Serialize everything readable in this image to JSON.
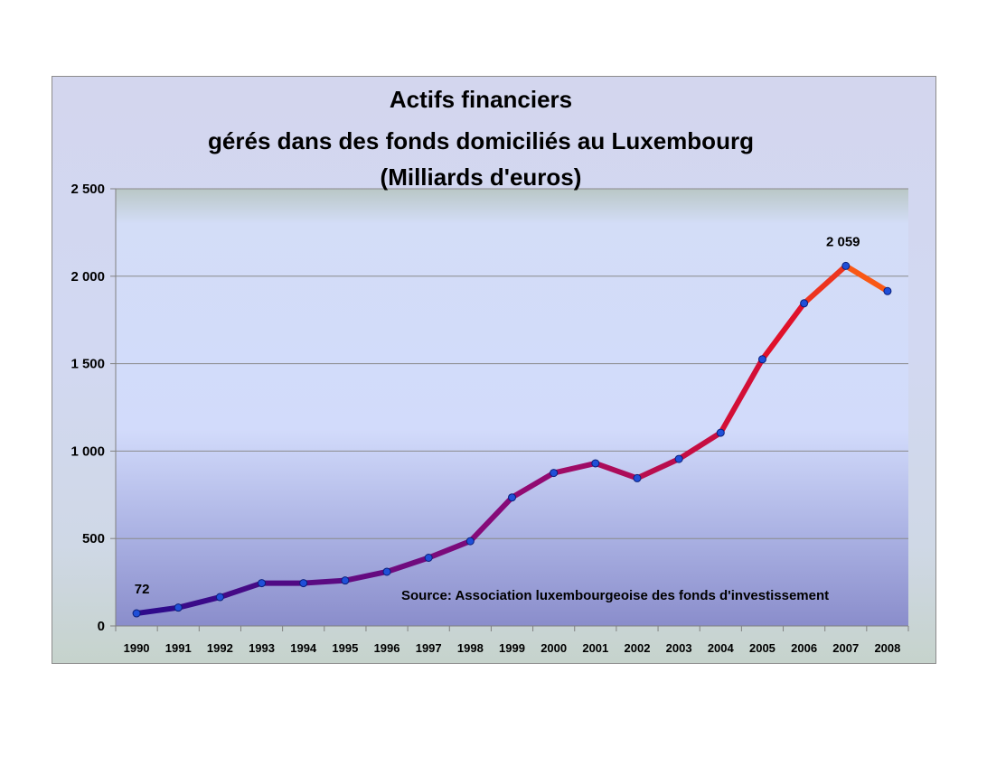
{
  "chart_data": {
    "type": "line",
    "title_lines": [
      "Actifs financiers",
      "gérés dans des fonds domiciliés au Luxembourg",
      "(Milliards d'euros)"
    ],
    "xlabel": "",
    "ylabel": "",
    "categories": [
      "1990",
      "1991",
      "1992",
      "1993",
      "1994",
      "1995",
      "1996",
      "1997",
      "1998",
      "1999",
      "2000",
      "2001",
      "2002",
      "2003",
      "2004",
      "2005",
      "2006",
      "2007",
      "2008"
    ],
    "series": [
      {
        "values": [
          72,
          105,
          165,
          245,
          245,
          260,
          310,
          390,
          485,
          735,
          875,
          930,
          845,
          955,
          1105,
          1525,
          1845,
          2059,
          1915
        ]
      }
    ],
    "ylim": [
      0,
      2500
    ],
    "y_ticks": [
      0,
      500,
      1000,
      1500,
      2000,
      2500
    ],
    "y_tick_labels": [
      "0",
      "500",
      "1 000",
      "1 500",
      "2 000",
      "2 500"
    ],
    "data_labels": [
      {
        "category": "1990",
        "text": "72"
      },
      {
        "category": "2007",
        "text": "2 059"
      }
    ],
    "annotation": "Source: Association luxembourgeoise des fonds d'investissement",
    "grid": "horizontal",
    "legend": "none",
    "colors": {
      "line_start": "#2a0a8c",
      "line_mid": "#8b0a78",
      "line_late": "#e0102a",
      "line_end": "#ff6a10",
      "marker": "#1f4fd8",
      "gridline": "#8a8a8a"
    }
  }
}
